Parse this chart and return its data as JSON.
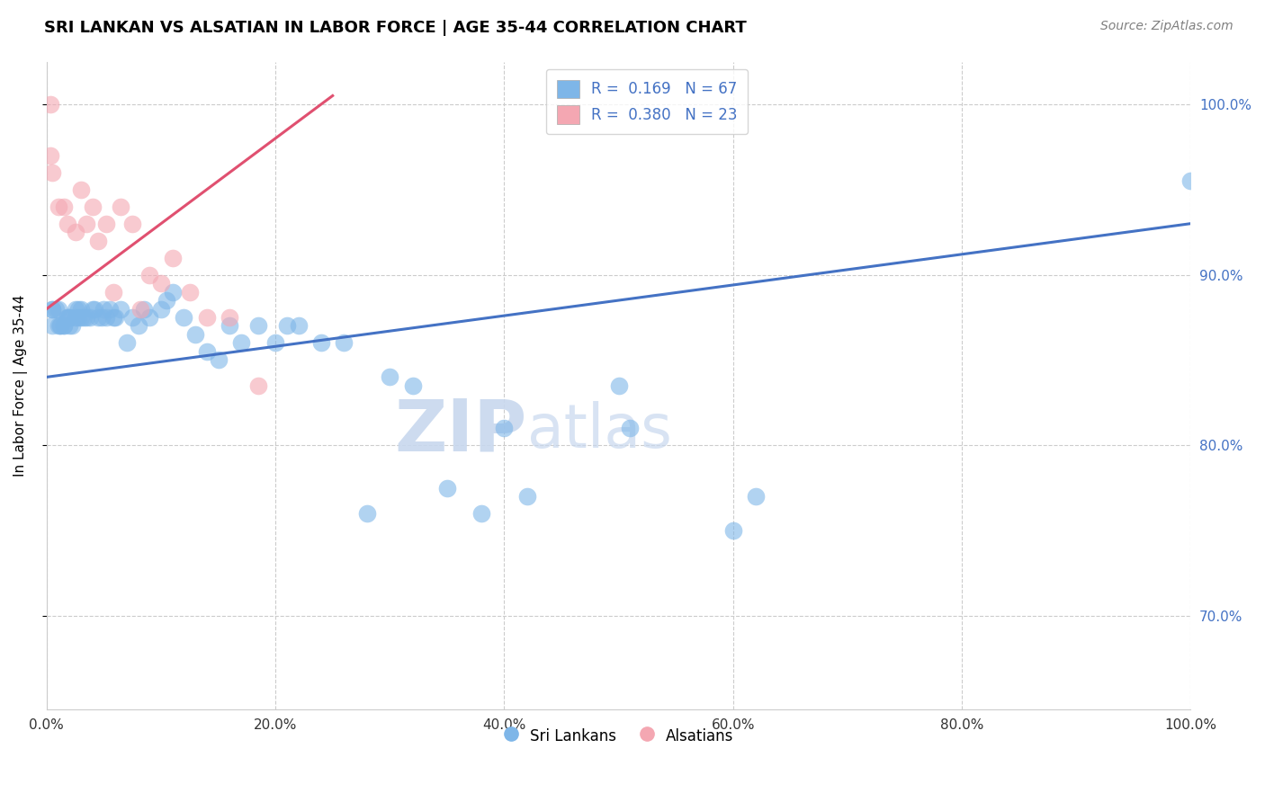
{
  "title": "SRI LANKAN VS ALSATIAN IN LABOR FORCE | AGE 35-44 CORRELATION CHART",
  "source": "Source: ZipAtlas.com",
  "ylabel": "In Labor Force | Age 35-44",
  "xmin": 0.0,
  "xmax": 1.0,
  "ymin": 0.645,
  "ymax": 1.025,
  "yticks_right": [
    0.7,
    0.8,
    0.9,
    1.0
  ],
  "ytick_labels_right": [
    "70.0%",
    "80.0%",
    "90.0%",
    "100.0%"
  ],
  "xticks": [
    0.0,
    0.2,
    0.4,
    0.6,
    0.8,
    1.0
  ],
  "xtick_labels": [
    "0.0%",
    "20.0%",
    "40.0%",
    "60.0%",
    "80.0%",
    "100.0%"
  ],
  "legend_r1": "R =  0.169",
  "legend_n1": "N = 67",
  "legend_r2": "R =  0.380",
  "legend_n2": "N = 23",
  "blue_color": "#7EB6E8",
  "pink_color": "#F4A7B2",
  "blue_line_color": "#4472C4",
  "pink_line_color": "#E05070",
  "watermark_zip": "ZIP",
  "watermark_atlas": "atlas",
  "sri_lankans_x": [
    0.005,
    0.005,
    0.005,
    0.008,
    0.01,
    0.01,
    0.012,
    0.012,
    0.015,
    0.015,
    0.018,
    0.018,
    0.02,
    0.02,
    0.02,
    0.022,
    0.025,
    0.025,
    0.028,
    0.028,
    0.03,
    0.03,
    0.032,
    0.035,
    0.038,
    0.04,
    0.042,
    0.045,
    0.048,
    0.05,
    0.052,
    0.055,
    0.058,
    0.06,
    0.065,
    0.07,
    0.075,
    0.08,
    0.085,
    0.09,
    0.1,
    0.105,
    0.11,
    0.12,
    0.13,
    0.14,
    0.15,
    0.16,
    0.17,
    0.185,
    0.2,
    0.21,
    0.22,
    0.24,
    0.26,
    0.28,
    0.3,
    0.32,
    0.35,
    0.38,
    0.4,
    0.42,
    0.5,
    0.51,
    0.6,
    0.62,
    1.0
  ],
  "sri_lankans_y": [
    0.87,
    0.88,
    0.88,
    0.88,
    0.87,
    0.88,
    0.87,
    0.87,
    0.87,
    0.87,
    0.875,
    0.875,
    0.875,
    0.87,
    0.875,
    0.87,
    0.875,
    0.88,
    0.875,
    0.88,
    0.875,
    0.88,
    0.875,
    0.875,
    0.875,
    0.88,
    0.88,
    0.875,
    0.875,
    0.88,
    0.875,
    0.88,
    0.875,
    0.875,
    0.88,
    0.86,
    0.875,
    0.87,
    0.88,
    0.875,
    0.88,
    0.885,
    0.89,
    0.875,
    0.865,
    0.855,
    0.85,
    0.87,
    0.86,
    0.87,
    0.86,
    0.87,
    0.87,
    0.86,
    0.86,
    0.76,
    0.84,
    0.835,
    0.775,
    0.76,
    0.81,
    0.77,
    0.835,
    0.81,
    0.75,
    0.77,
    0.955
  ],
  "alsatians_x": [
    0.003,
    0.003,
    0.005,
    0.01,
    0.015,
    0.018,
    0.025,
    0.03,
    0.035,
    0.04,
    0.045,
    0.052,
    0.058,
    0.065,
    0.075,
    0.082,
    0.09,
    0.1,
    0.11,
    0.125,
    0.14,
    0.16,
    0.185
  ],
  "alsatians_y": [
    1.0,
    0.97,
    0.96,
    0.94,
    0.94,
    0.93,
    0.925,
    0.95,
    0.93,
    0.94,
    0.92,
    0.93,
    0.89,
    0.94,
    0.93,
    0.88,
    0.9,
    0.895,
    0.91,
    0.89,
    0.875,
    0.875,
    0.835
  ]
}
